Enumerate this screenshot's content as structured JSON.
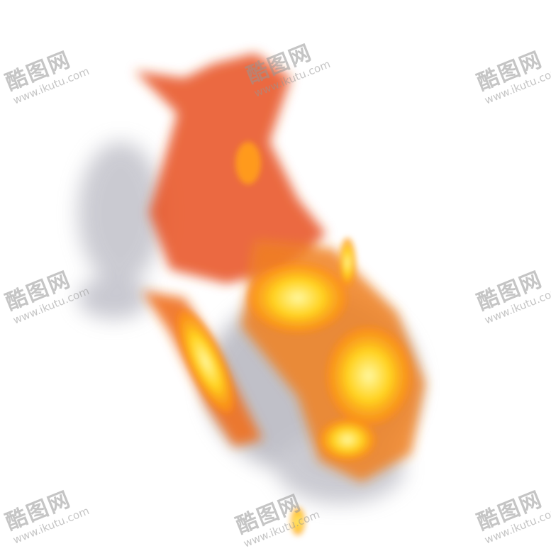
{
  "image": {
    "subject": "fire-flame",
    "colors": {
      "core": "#ffe84a",
      "mid": "#ff9a1e",
      "outer": "#e8401a",
      "smoke": "#9a9aa8",
      "background": "#ffffff"
    }
  },
  "watermark": {
    "brand": "酷图网",
    "url": "www.ikutu.com"
  }
}
